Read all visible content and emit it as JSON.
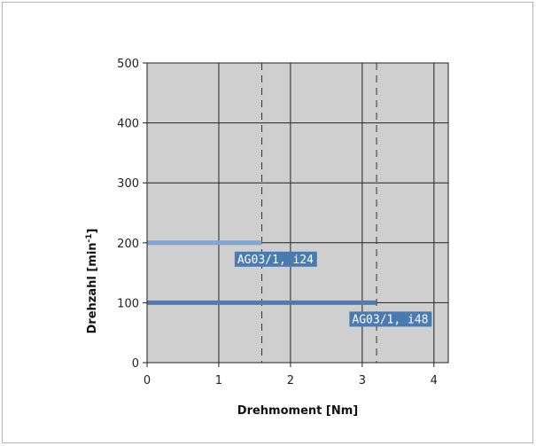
{
  "chart_data": {
    "type": "line",
    "xlabel": "Drehmoment [Nm]",
    "ylabel_main": "Drehzahl [min",
    "ylabel_sup": "-1",
    "ylabel_close": "]",
    "xlim": [
      0,
      4.2
    ],
    "ylim": [
      0,
      500
    ],
    "x_ticks": [
      0,
      1,
      2,
      3,
      4
    ],
    "y_ticks": [
      0,
      100,
      200,
      300,
      400,
      500
    ],
    "grid": true,
    "plot_background": "#cfcfcf",
    "series": [
      {
        "name": "AG03/1, i24",
        "x": [
          0,
          1.6
        ],
        "y": [
          200,
          200
        ],
        "color": "#7ea6d6",
        "label_color": "#4a7bb0",
        "limit_x": 1.6
      },
      {
        "name": "AG03/1, i48",
        "x": [
          0,
          3.2
        ],
        "y": [
          100,
          100
        ],
        "color": "#4f7bb3",
        "label_color": "#4a7bb0",
        "limit_x": 3.2
      }
    ]
  }
}
